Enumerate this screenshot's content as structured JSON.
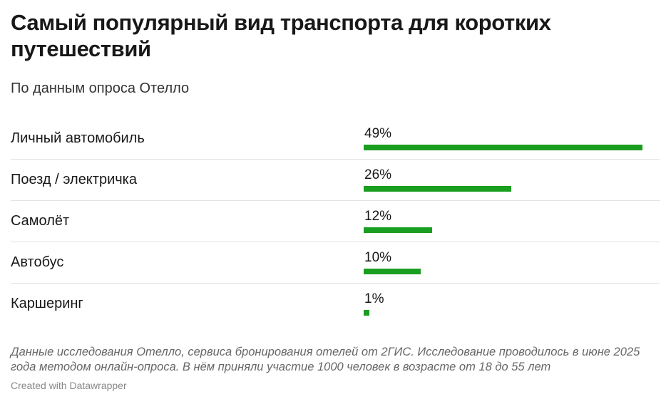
{
  "header": {
    "title": "Самый популярный вид транспорта для коротких путешествий",
    "subtitle": "По данным опроса Отелло"
  },
  "footer": {
    "notes": "Данные исследования Отелло, сервиса бронирования отелей от 2ГИС. Исследование проводилось в июне 2025 года методом онлайн-опроса. В нём приняли участие 1000 человек в возрасте от 18 до 55 лет",
    "credit": "Created with Datawrapper"
  },
  "colors": {
    "bar": "#1a9e1f"
  },
  "chart_data": {
    "type": "bar",
    "orientation": "horizontal",
    "title": "Самый популярный вид транспорта для коротких путешествий",
    "subtitle": "По данным опроса Отелло",
    "categories": [
      "Личный автомобиль",
      "Поезд / электричка",
      "Самолёт",
      "Автобус",
      "Каршеринг"
    ],
    "values": [
      49,
      26,
      12,
      10,
      1
    ],
    "value_labels": [
      "49%",
      "26%",
      "12%",
      "10%",
      "1%"
    ],
    "unit": "%",
    "xlim": [
      0,
      49
    ],
    "grid": false,
    "legend": "none"
  }
}
